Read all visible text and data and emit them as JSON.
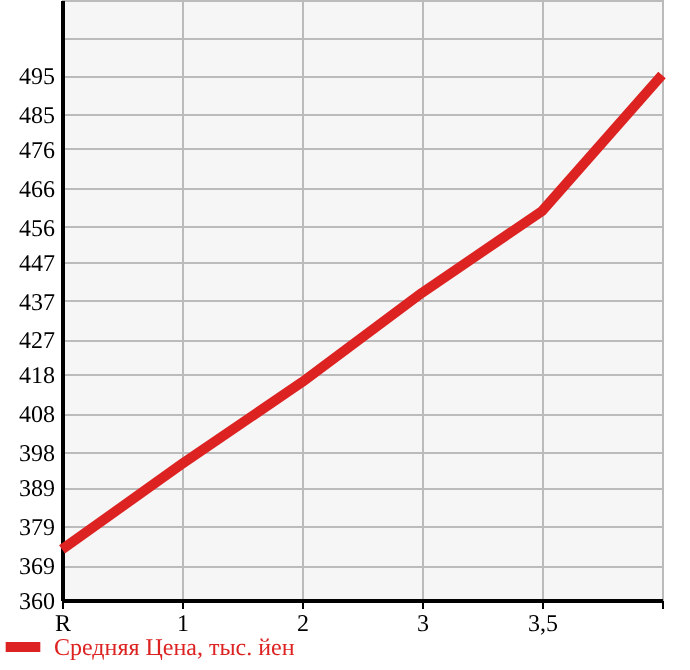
{
  "chart_data": {
    "type": "line",
    "categories": [
      "R",
      "1",
      "2",
      "3",
      "3,5",
      null
    ],
    "series": [
      {
        "name": "Средняя Цена, тыс. йен",
        "color": "#dd2222",
        "values": [
          373,
          395,
          416,
          439,
          460,
          495
        ]
      }
    ],
    "ylim": [
      360,
      514.29
    ],
    "yticks": [
      360,
      369,
      379,
      389,
      398,
      408,
      418,
      427,
      437,
      447,
      456,
      466,
      476,
      485,
      495,
      {
        "value": 504.64,
        "label": null
      }
    ],
    "grid": true,
    "legend": "bottom left",
    "marker": "none",
    "line_style": "solid"
  }
}
